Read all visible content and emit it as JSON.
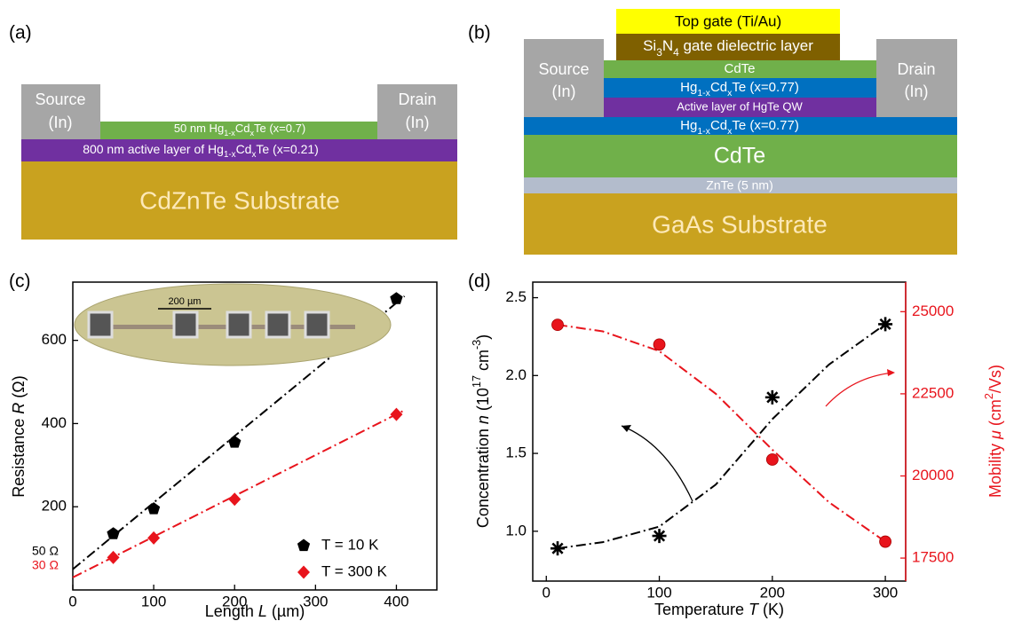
{
  "diagram_a": {
    "label": "(a)",
    "source": [
      "Source",
      "(In)"
    ],
    "drain": [
      "Drain",
      "(In)"
    ],
    "cap_layer": [
      "50 nm Hg",
      "1-x",
      "Cd",
      "x",
      "Te  (x=0.7)"
    ],
    "active_layer": [
      "800 nm active layer of Hg",
      "1-x",
      "Cd",
      "x",
      "Te  (x=0.21)"
    ],
    "substrate": "CdZnTe Substrate"
  },
  "diagram_b": {
    "label": "(b)",
    "top_gate": "Top gate (Ti/Au)",
    "dielectric": [
      "Si",
      "3",
      "N",
      "4",
      " gate dielectric layer"
    ],
    "source": [
      "Source",
      "(In)"
    ],
    "drain": [
      "Drain",
      "(In)"
    ],
    "cap_layer": "CdTe",
    "barrier_top": [
      "Hg",
      "1-x",
      "Cd",
      "x",
      "Te (x=0.77)"
    ],
    "quantum_well": "Active layer of HgTe QW",
    "barrier_bottom": [
      "Hg",
      "1-x",
      "Cd",
      "x",
      "Te (x=0.77)"
    ],
    "buffer": "CdTe",
    "znte": "ZnTe (5 nm)",
    "substrate": "GaAs Substrate"
  },
  "chart_data": [
    {
      "type": "scatter",
      "label": "(c)",
      "x_label": [
        "Length ",
        "L",
        " (µm)"
      ],
      "y_label": [
        "Resistance ",
        "R",
        " (Ω)"
      ],
      "xlim": [
        0,
        450
      ],
      "xticks": [
        0,
        100,
        200,
        300,
        400
      ],
      "ylim": [
        0,
        740
      ],
      "yticks": [
        200,
        400,
        600
      ],
      "x": [
        50,
        100,
        200,
        400
      ],
      "series": [
        {
          "name": "T = 10 K",
          "color": "#000000",
          "marker": "pentagon",
          "values": [
            135,
            195,
            355,
            700
          ]
        },
        {
          "name": "T = 300 K",
          "color": "#e8141c",
          "marker": "diamond",
          "values": [
            78,
            125,
            218,
            422
          ]
        }
      ],
      "fits": [
        {
          "color": "#000000",
          "x": [
            0,
            410
          ],
          "values": [
            50,
            706
          ]
        },
        {
          "color": "#e8141c",
          "x": [
            0,
            410
          ],
          "values": [
            30,
            432
          ]
        }
      ],
      "annotations": [
        "50 Ω",
        "30 Ω"
      ],
      "inset_label": "200 µm",
      "legend": "lower right"
    },
    {
      "type": "scatter",
      "label": "(d)",
      "x_label": [
        "Temperature ",
        "T",
        " (K)"
      ],
      "y_label": [
        "Concentration ",
        "n",
        " (10",
        "17",
        " cm",
        "-3",
        ")"
      ],
      "y2_label": [
        "Mobility ",
        "μ",
        " (cm",
        "2",
        "/Vs)"
      ],
      "xlim": [
        -12,
        318
      ],
      "xticks": [
        0,
        100,
        200,
        300
      ],
      "ylim": [
        0.68,
        2.6
      ],
      "yticks": [
        {
          "value": 1,
          "label": "1.0"
        },
        1.5,
        {
          "value": 2,
          "label": "2.0"
        },
        2.5
      ],
      "y2lim": [
        16800,
        25900
      ],
      "y2ticks": [
        17500,
        20000,
        22500,
        25000
      ],
      "x": [
        10,
        100,
        200,
        300
      ],
      "series": [
        {
          "color": "#000000",
          "marker": "star",
          "values": [
            0.89,
            0.97,
            1.86,
            2.33
          ]
        },
        {
          "color": "#e8141c",
          "marker": "circle",
          "axis": "y2",
          "values": [
            24600,
            24000,
            20500,
            18000
          ]
        }
      ],
      "fits": [
        {
          "color": "#000000",
          "x": [
            10,
            50,
            100,
            150,
            200,
            250,
            300
          ],
          "values": [
            0.89,
            0.93,
            1.03,
            1.3,
            1.72,
            2.07,
            2.33
          ]
        },
        {
          "color": "#e8141c",
          "axis": "y2",
          "x": [
            10,
            50,
            100,
            150,
            200,
            250,
            300
          ],
          "values": [
            24600,
            24400,
            23800,
            22500,
            20800,
            19200,
            18000
          ]
        }
      ]
    }
  ]
}
